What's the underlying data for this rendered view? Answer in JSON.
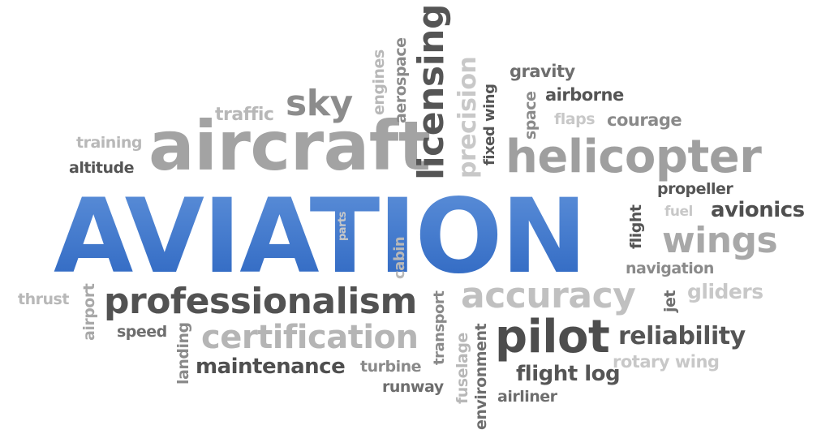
{
  "cloud": {
    "hero": "AVIATION",
    "hero_color": "#3a72c9",
    "words": {
      "aircraft": "aircraft",
      "sky": "sky",
      "traffic": "traffic",
      "training": "training",
      "altitude": "altitude",
      "engines": "engines",
      "aerospace": "aerospace",
      "licensing": "licensing",
      "precision": "precision",
      "fixed_wing": "fixed wing",
      "space": "space",
      "gravity": "gravity",
      "airborne": "airborne",
      "flaps": "flaps",
      "courage": "courage",
      "helicopter": "helicopter",
      "propeller": "propeller",
      "fuel": "fuel",
      "avionics": "avionics",
      "flight": "flight",
      "wings": "wings",
      "navigation": "navigation",
      "gliders": "gliders",
      "jet": "jet",
      "thrust": "thrust",
      "airport": "airport",
      "professionalism": "professionalism",
      "parts": "parts",
      "cabin": "cabin",
      "transport": "transport",
      "accuracy": "accuracy",
      "speed": "speed",
      "landing": "landing",
      "certification": "certification",
      "maintenance": "maintenance",
      "turbine": "turbine",
      "runway": "runway",
      "fuselage": "fuselage",
      "environment": "environment",
      "pilot": "pilot",
      "reliability": "reliability",
      "rotary_wing": "rotary wing",
      "flight_log": "flight log",
      "airliner": "airliner"
    }
  }
}
